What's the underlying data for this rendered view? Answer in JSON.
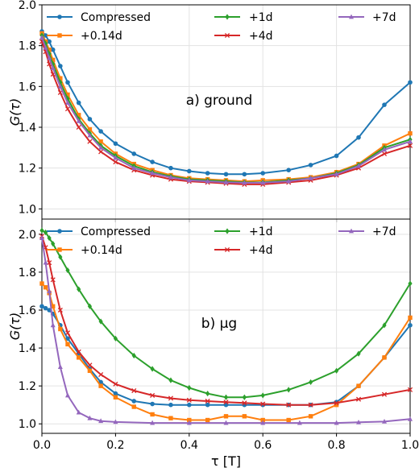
{
  "chart_data": [
    {
      "type": "line",
      "panel_label": "a) ground",
      "ylabel": "G(τ)",
      "xlabel": "",
      "xlim": [
        0,
        1
      ],
      "ylim": [
        0.95,
        2.0
      ],
      "x_ticks": [
        "0.0",
        "0.2",
        "0.4",
        "0.6",
        "0.8",
        "1.0"
      ],
      "x_ticks_shown": false,
      "y_ticks": [
        "1.0",
        "1.2",
        "1.4",
        "1.6",
        "1.8",
        "2.0"
      ],
      "y_tick_values": [
        1.0,
        1.2,
        1.4,
        1.6,
        1.8,
        2.0
      ],
      "grid": true,
      "legend_position": "top",
      "series": [
        {
          "name": "Compressed",
          "color": "#1f77b4",
          "marker": "circle",
          "points": [
            [
              0.0,
              1.87
            ],
            [
              0.01,
              1.85
            ],
            [
              0.02,
              1.82
            ],
            [
              0.03,
              1.78
            ],
            [
              0.05,
              1.7
            ],
            [
              0.07,
              1.62
            ],
            [
              0.1,
              1.52
            ],
            [
              0.13,
              1.44
            ],
            [
              0.16,
              1.38
            ],
            [
              0.2,
              1.32
            ],
            [
              0.25,
              1.27
            ],
            [
              0.3,
              1.23
            ],
            [
              0.35,
              1.2
            ],
            [
              0.4,
              1.185
            ],
            [
              0.45,
              1.175
            ],
            [
              0.5,
              1.17
            ],
            [
              0.55,
              1.17
            ],
            [
              0.6,
              1.175
            ],
            [
              0.67,
              1.19
            ],
            [
              0.73,
              1.215
            ],
            [
              0.8,
              1.26
            ],
            [
              0.86,
              1.35
            ],
            [
              0.93,
              1.51
            ],
            [
              1.0,
              1.62
            ]
          ]
        },
        {
          "name": "+0.14d",
          "color": "#ff7f0e",
          "marker": "square",
          "points": [
            [
              0.0,
              1.86
            ],
            [
              0.01,
              1.82
            ],
            [
              0.02,
              1.78
            ],
            [
              0.03,
              1.73
            ],
            [
              0.05,
              1.64
            ],
            [
              0.07,
              1.56
            ],
            [
              0.1,
              1.46
            ],
            [
              0.13,
              1.39
            ],
            [
              0.16,
              1.33
            ],
            [
              0.2,
              1.27
            ],
            [
              0.25,
              1.22
            ],
            [
              0.3,
              1.19
            ],
            [
              0.35,
              1.165
            ],
            [
              0.4,
              1.15
            ],
            [
              0.45,
              1.145
            ],
            [
              0.5,
              1.14
            ],
            [
              0.55,
              1.135
            ],
            [
              0.6,
              1.14
            ],
            [
              0.67,
              1.145
            ],
            [
              0.73,
              1.155
            ],
            [
              0.8,
              1.18
            ],
            [
              0.86,
              1.22
            ],
            [
              0.93,
              1.31
            ],
            [
              1.0,
              1.37
            ]
          ]
        },
        {
          "name": "+1d",
          "color": "#2ca02c",
          "marker": "diamond",
          "points": [
            [
              0.0,
              1.85
            ],
            [
              0.01,
              1.81
            ],
            [
              0.02,
              1.76
            ],
            [
              0.03,
              1.71
            ],
            [
              0.05,
              1.62
            ],
            [
              0.07,
              1.54
            ],
            [
              0.1,
              1.44
            ],
            [
              0.13,
              1.37
            ],
            [
              0.16,
              1.31
            ],
            [
              0.2,
              1.26
            ],
            [
              0.25,
              1.21
            ],
            [
              0.3,
              1.18
            ],
            [
              0.35,
              1.16
            ],
            [
              0.4,
              1.145
            ],
            [
              0.45,
              1.14
            ],
            [
              0.5,
              1.135
            ],
            [
              0.55,
              1.13
            ],
            [
              0.6,
              1.13
            ],
            [
              0.67,
              1.14
            ],
            [
              0.73,
              1.15
            ],
            [
              0.8,
              1.175
            ],
            [
              0.86,
              1.215
            ],
            [
              0.93,
              1.3
            ],
            [
              1.0,
              1.34
            ]
          ]
        },
        {
          "name": "+4d",
          "color": "#d62728",
          "marker": "x",
          "points": [
            [
              0.0,
              1.82
            ],
            [
              0.01,
              1.77
            ],
            [
              0.02,
              1.71
            ],
            [
              0.03,
              1.66
            ],
            [
              0.05,
              1.57
            ],
            [
              0.07,
              1.49
            ],
            [
              0.1,
              1.4
            ],
            [
              0.13,
              1.33
            ],
            [
              0.16,
              1.28
            ],
            [
              0.2,
              1.23
            ],
            [
              0.25,
              1.19
            ],
            [
              0.3,
              1.165
            ],
            [
              0.35,
              1.145
            ],
            [
              0.4,
              1.135
            ],
            [
              0.45,
              1.13
            ],
            [
              0.5,
              1.125
            ],
            [
              0.55,
              1.12
            ],
            [
              0.6,
              1.12
            ],
            [
              0.67,
              1.13
            ],
            [
              0.73,
              1.14
            ],
            [
              0.8,
              1.165
            ],
            [
              0.86,
              1.2
            ],
            [
              0.93,
              1.27
            ],
            [
              1.0,
              1.31
            ]
          ]
        },
        {
          "name": "+7d",
          "color": "#9467bd",
          "marker": "triangle",
          "points": [
            [
              0.0,
              1.84
            ],
            [
              0.01,
              1.79
            ],
            [
              0.02,
              1.74
            ],
            [
              0.03,
              1.69
            ],
            [
              0.05,
              1.6
            ],
            [
              0.07,
              1.52
            ],
            [
              0.1,
              1.43
            ],
            [
              0.13,
              1.36
            ],
            [
              0.16,
              1.3
            ],
            [
              0.2,
              1.25
            ],
            [
              0.25,
              1.2
            ],
            [
              0.3,
              1.175
            ],
            [
              0.35,
              1.155
            ],
            [
              0.4,
              1.14
            ],
            [
              0.45,
              1.135
            ],
            [
              0.5,
              1.13
            ],
            [
              0.55,
              1.128
            ],
            [
              0.6,
              1.128
            ],
            [
              0.67,
              1.135
            ],
            [
              0.73,
              1.15
            ],
            [
              0.8,
              1.17
            ],
            [
              0.86,
              1.21
            ],
            [
              0.93,
              1.29
            ],
            [
              1.0,
              1.33
            ]
          ]
        }
      ]
    },
    {
      "type": "line",
      "panel_label": "b) μg",
      "ylabel": "G(τ)",
      "xlabel": "τ [T]",
      "xlim": [
        0,
        1
      ],
      "ylim": [
        0.95,
        2.08
      ],
      "x_ticks": [
        "0.0",
        "0.2",
        "0.4",
        "0.6",
        "0.8",
        "1.0"
      ],
      "x_ticks_shown": true,
      "y_ticks": [
        "1.0",
        "1.2",
        "1.4",
        "1.6",
        "1.8",
        "2.0"
      ],
      "y_tick_values": [
        1.0,
        1.2,
        1.4,
        1.6,
        1.8,
        2.0
      ],
      "grid": true,
      "legend_position": "top",
      "series": [
        {
          "name": "Compressed",
          "color": "#1f77b4",
          "marker": "circle",
          "points": [
            [
              0.0,
              1.62
            ],
            [
              0.01,
              1.61
            ],
            [
              0.02,
              1.6
            ],
            [
              0.03,
              1.58
            ],
            [
              0.05,
              1.52
            ],
            [
              0.07,
              1.45
            ],
            [
              0.1,
              1.37
            ],
            [
              0.13,
              1.29
            ],
            [
              0.16,
              1.22
            ],
            [
              0.2,
              1.16
            ],
            [
              0.25,
              1.12
            ],
            [
              0.3,
              1.105
            ],
            [
              0.35,
              1.1
            ],
            [
              0.4,
              1.1
            ],
            [
              0.45,
              1.1
            ],
            [
              0.5,
              1.1
            ],
            [
              0.55,
              1.1
            ],
            [
              0.6,
              1.1
            ],
            [
              0.67,
              1.1
            ],
            [
              0.73,
              1.1
            ],
            [
              0.8,
              1.115
            ],
            [
              0.86,
              1.2
            ],
            [
              0.93,
              1.35
            ],
            [
              1.0,
              1.52
            ]
          ]
        },
        {
          "name": "+0.14d",
          "color": "#ff7f0e",
          "marker": "square",
          "points": [
            [
              0.0,
              1.74
            ],
            [
              0.01,
              1.72
            ],
            [
              0.02,
              1.69
            ],
            [
              0.03,
              1.62
            ],
            [
              0.05,
              1.5
            ],
            [
              0.07,
              1.42
            ],
            [
              0.1,
              1.35
            ],
            [
              0.13,
              1.28
            ],
            [
              0.16,
              1.2
            ],
            [
              0.2,
              1.14
            ],
            [
              0.25,
              1.09
            ],
            [
              0.3,
              1.05
            ],
            [
              0.35,
              1.03
            ],
            [
              0.4,
              1.02
            ],
            [
              0.45,
              1.02
            ],
            [
              0.5,
              1.04
            ],
            [
              0.55,
              1.04
            ],
            [
              0.6,
              1.02
            ],
            [
              0.67,
              1.02
            ],
            [
              0.73,
              1.04
            ],
            [
              0.8,
              1.1
            ],
            [
              0.86,
              1.2
            ],
            [
              0.93,
              1.35
            ],
            [
              1.0,
              1.56
            ]
          ]
        },
        {
          "name": "+1d",
          "color": "#2ca02c",
          "marker": "diamond",
          "points": [
            [
              0.0,
              2.02
            ],
            [
              0.01,
              2.01
            ],
            [
              0.02,
              1.98
            ],
            [
              0.03,
              1.95
            ],
            [
              0.05,
              1.88
            ],
            [
              0.07,
              1.81
            ],
            [
              0.1,
              1.71
            ],
            [
              0.13,
              1.62
            ],
            [
              0.16,
              1.54
            ],
            [
              0.2,
              1.45
            ],
            [
              0.25,
              1.36
            ],
            [
              0.3,
              1.29
            ],
            [
              0.35,
              1.23
            ],
            [
              0.4,
              1.19
            ],
            [
              0.45,
              1.16
            ],
            [
              0.5,
              1.14
            ],
            [
              0.55,
              1.14
            ],
            [
              0.6,
              1.15
            ],
            [
              0.67,
              1.18
            ],
            [
              0.73,
              1.22
            ],
            [
              0.8,
              1.28
            ],
            [
              0.86,
              1.37
            ],
            [
              0.93,
              1.52
            ],
            [
              1.0,
              1.74
            ]
          ]
        },
        {
          "name": "+4d",
          "color": "#d62728",
          "marker": "x",
          "points": [
            [
              0.0,
              1.99
            ],
            [
              0.01,
              1.93
            ],
            [
              0.02,
              1.85
            ],
            [
              0.03,
              1.76
            ],
            [
              0.05,
              1.6
            ],
            [
              0.07,
              1.48
            ],
            [
              0.1,
              1.38
            ],
            [
              0.13,
              1.31
            ],
            [
              0.16,
              1.26
            ],
            [
              0.2,
              1.21
            ],
            [
              0.25,
              1.175
            ],
            [
              0.3,
              1.15
            ],
            [
              0.35,
              1.135
            ],
            [
              0.4,
              1.125
            ],
            [
              0.45,
              1.12
            ],
            [
              0.5,
              1.115
            ],
            [
              0.55,
              1.11
            ],
            [
              0.6,
              1.105
            ],
            [
              0.67,
              1.1
            ],
            [
              0.73,
              1.1
            ],
            [
              0.8,
              1.11
            ],
            [
              0.86,
              1.13
            ],
            [
              0.93,
              1.155
            ],
            [
              1.0,
              1.18
            ]
          ]
        },
        {
          "name": "+7d",
          "color": "#9467bd",
          "marker": "triangle",
          "points": [
            [
              0.0,
              1.98
            ],
            [
              0.01,
              1.85
            ],
            [
              0.02,
              1.7
            ],
            [
              0.03,
              1.52
            ],
            [
              0.05,
              1.3
            ],
            [
              0.07,
              1.15
            ],
            [
              0.1,
              1.06
            ],
            [
              0.13,
              1.03
            ],
            [
              0.16,
              1.015
            ],
            [
              0.2,
              1.01
            ],
            [
              0.3,
              1.005
            ],
            [
              0.4,
              1.005
            ],
            [
              0.5,
              1.005
            ],
            [
              0.6,
              1.005
            ],
            [
              0.7,
              1.005
            ],
            [
              0.8,
              1.005
            ],
            [
              0.86,
              1.008
            ],
            [
              0.93,
              1.012
            ],
            [
              1.0,
              1.025
            ]
          ]
        }
      ]
    }
  ]
}
